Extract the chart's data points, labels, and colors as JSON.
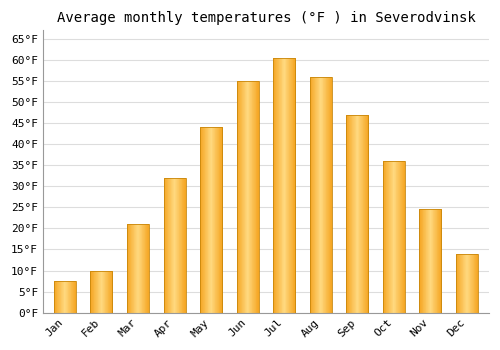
{
  "title": "Average monthly temperatures (°F ) in Severodvinsk",
  "months": [
    "Jan",
    "Feb",
    "Mar",
    "Apr",
    "May",
    "Jun",
    "Jul",
    "Aug",
    "Sep",
    "Oct",
    "Nov",
    "Dec"
  ],
  "values": [
    7.5,
    10,
    21,
    32,
    44,
    55,
    60.5,
    56,
    47,
    36,
    24.5,
    14
  ],
  "bar_color_left": "#F5A623",
  "bar_color_center": "#FFD980",
  "bar_color_edge": "#C8860A",
  "ylim": [
    0,
    67
  ],
  "yticks": [
    0,
    5,
    10,
    15,
    20,
    25,
    30,
    35,
    40,
    45,
    50,
    55,
    60,
    65
  ],
  "ytick_labels": [
    "0°F",
    "5°F",
    "10°F",
    "15°F",
    "20°F",
    "25°F",
    "30°F",
    "35°F",
    "40°F",
    "45°F",
    "50°F",
    "55°F",
    "60°F",
    "65°F"
  ],
  "bg_color": "#ffffff",
  "plot_bg_color": "#ffffff",
  "grid_color": "#dddddd",
  "title_fontsize": 10,
  "tick_fontsize": 8,
  "tick_font_family": "monospace",
  "bar_width": 0.6
}
